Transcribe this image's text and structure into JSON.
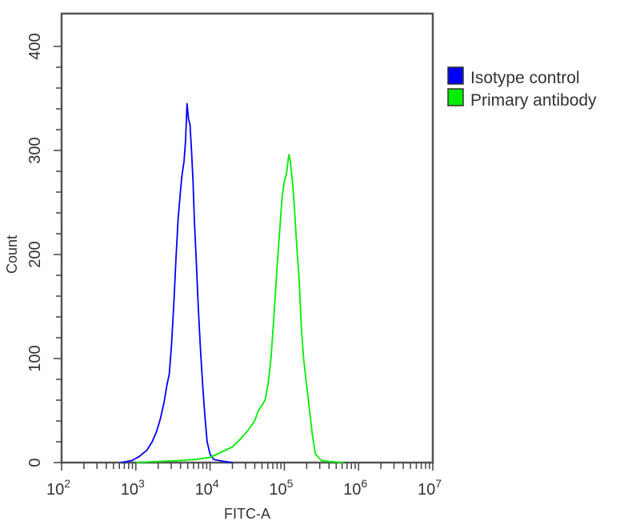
{
  "chart_data": {
    "type": "line",
    "title": "",
    "xlabel": "FITC-A",
    "ylabel": "Count",
    "xscale": "log",
    "xlim": [
      100,
      10000000
    ],
    "ylim": [
      0,
      400
    ],
    "x_ticks": [
      {
        "base": "10",
        "exp": "2"
      },
      {
        "base": "10",
        "exp": "3"
      },
      {
        "base": "10",
        "exp": "4"
      },
      {
        "base": "10",
        "exp": "5"
      },
      {
        "base": "10",
        "exp": "6"
      },
      {
        "base": "10",
        "exp": "7"
      }
    ],
    "y_ticks": [
      "0",
      "100",
      "200",
      "300",
      "400"
    ],
    "grid": false,
    "legend_position": "upper right, outside plot",
    "series": [
      {
        "name": "Isotype control",
        "color": "#0000ff",
        "log10_x": [
          2.8,
          2.95,
          3.05,
          3.15,
          3.22,
          3.28,
          3.33,
          3.38,
          3.42,
          3.45,
          3.48,
          3.51,
          3.54,
          3.57,
          3.6,
          3.62,
          3.65,
          3.67,
          3.69,
          3.71,
          3.73,
          3.75,
          3.77,
          3.79,
          3.81,
          3.84,
          3.87,
          3.9,
          3.93,
          3.96,
          4.0,
          4.05,
          4.12,
          4.2,
          4.3
        ],
        "values": [
          0,
          2,
          6,
          12,
          20,
          30,
          42,
          58,
          75,
          85,
          112,
          150,
          195,
          235,
          260,
          275,
          290,
          310,
          345,
          330,
          325,
          300,
          270,
          230,
          200,
          150,
          110,
          75,
          45,
          20,
          8,
          3,
          2,
          1,
          0
        ]
      },
      {
        "name": "Primary antibody",
        "color": "#00ee00",
        "log10_x": [
          3.0,
          3.3,
          3.6,
          3.8,
          4.0,
          4.15,
          4.3,
          4.4,
          4.5,
          4.6,
          4.65,
          4.7,
          4.74,
          4.78,
          4.82,
          4.86,
          4.9,
          4.94,
          4.97,
          5.0,
          5.03,
          5.06,
          5.08,
          5.11,
          5.14,
          5.17,
          5.2,
          5.23,
          5.26,
          5.3,
          5.34,
          5.38,
          5.42,
          5.5,
          5.6,
          5.8
        ],
        "values": [
          0,
          1,
          2,
          3,
          5,
          10,
          15,
          22,
          30,
          40,
          50,
          55,
          60,
          75,
          100,
          140,
          185,
          225,
          255,
          270,
          278,
          296,
          290,
          270,
          240,
          205,
          175,
          130,
          100,
          75,
          50,
          25,
          8,
          2,
          1,
          0
        ]
      }
    ]
  },
  "legend": {
    "items": [
      {
        "label": "Isotype control",
        "color": "#0000ff"
      },
      {
        "label": "Primary antibody",
        "color": "#00ee00"
      }
    ]
  },
  "axes": {
    "x_title": "FITC-A",
    "y_title": "Count"
  }
}
